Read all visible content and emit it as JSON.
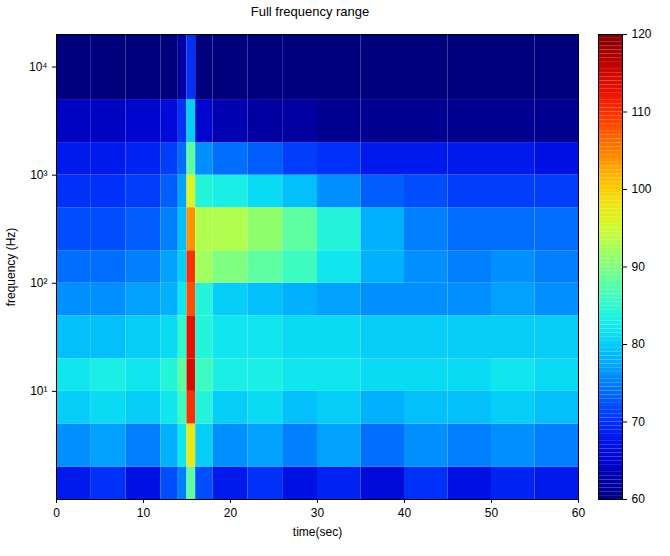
{
  "chart_data": {
    "type": "heatmap",
    "title": "Full frequency range",
    "x_label": "time(sec)",
    "y_label": "frequency (Hz)",
    "log": "y",
    "xlim": [
      0,
      60
    ],
    "xticks": [
      0,
      10,
      20,
      30,
      40,
      50,
      60
    ],
    "ylim": [
      1,
      20000
    ],
    "yticks": [
      {
        "value": 10,
        "label": "10¹"
      },
      {
        "value": 100,
        "label": "10²"
      },
      {
        "value": 1000,
        "label": "10³"
      },
      {
        "value": 10000,
        "label": "10⁴"
      }
    ],
    "x_edges": [
      0,
      4,
      8,
      12,
      14,
      15,
      16,
      18,
      22,
      26,
      30,
      35,
      40,
      45,
      50,
      55,
      60
    ],
    "y_edges": [
      1,
      2,
      5,
      10,
      20,
      50,
      100,
      200,
      500,
      1000,
      2000,
      5000,
      20000
    ],
    "values": [
      [
        68,
        70,
        67,
        72,
        75,
        88,
        72,
        68,
        70,
        67,
        69,
        66,
        70,
        67,
        69,
        68
      ],
      [
        76,
        77,
        75,
        78,
        82,
        98,
        80,
        76,
        77,
        75,
        77,
        74,
        76,
        75,
        76,
        75
      ],
      [
        80,
        81,
        80,
        82,
        86,
        110,
        84,
        80,
        81,
        79,
        80,
        78,
        79,
        79,
        80,
        79
      ],
      [
        82,
        83,
        82,
        84,
        88,
        114,
        86,
        83,
        83,
        82,
        82,
        81,
        81,
        81,
        82,
        81
      ],
      [
        79,
        79,
        80,
        81,
        85,
        113,
        84,
        82,
        82,
        81,
        81,
        80,
        80,
        80,
        80,
        80
      ],
      [
        76,
        76,
        77,
        78,
        82,
        108,
        84,
        80,
        79,
        78,
        77,
        76,
        76,
        76,
        77,
        76
      ],
      [
        74,
        74,
        75,
        77,
        80,
        110,
        92,
        90,
        88,
        86,
        82,
        78,
        76,
        75,
        76,
        75
      ],
      [
        72,
        72,
        73,
        75,
        79,
        104,
        93,
        93,
        91,
        88,
        84,
        78,
        75,
        74,
        74,
        74
      ],
      [
        70,
        70,
        71,
        73,
        77,
        96,
        84,
        83,
        81,
        79,
        76,
        73,
        72,
        71,
        71,
        71
      ],
      [
        68,
        68,
        69,
        71,
        74,
        88,
        76,
        74,
        73,
        71,
        70,
        68,
        68,
        68,
        68,
        67
      ],
      [
        64,
        64,
        65,
        66,
        70,
        80,
        65,
        63,
        62,
        62,
        61,
        61,
        61,
        61,
        61,
        61
      ],
      [
        60,
        60,
        60,
        60,
        62,
        70,
        60,
        60,
        60,
        60,
        60,
        60,
        60,
        60,
        60,
        60
      ]
    ],
    "colorbar": {
      "range": [
        60,
        120
      ],
      "ticks": [
        60,
        70,
        80,
        90,
        100,
        110,
        120
      ]
    }
  }
}
